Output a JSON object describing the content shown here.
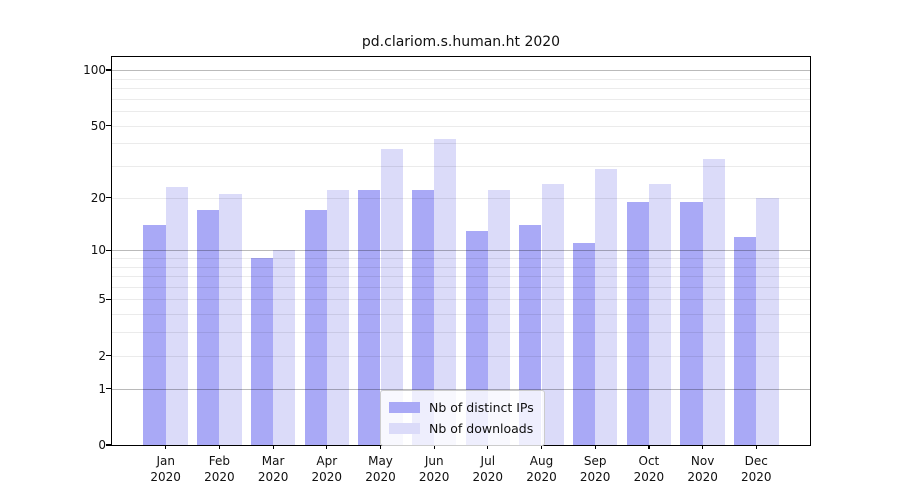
{
  "title": "pd.clariom.s.human.ht 2020",
  "chart_data": {
    "type": "bar",
    "title": "pd.clariom.s.human.ht 2020",
    "categories": [
      "Jan",
      "Feb",
      "Mar",
      "Apr",
      "May",
      "Jun",
      "Jul",
      "Aug",
      "Sep",
      "Oct",
      "Nov",
      "Dec"
    ],
    "category_year": "2020",
    "series": [
      {
        "name": "Nb of distinct IPs",
        "color": "#a9a9f6",
        "values": [
          14,
          17,
          9,
          17,
          22,
          22,
          13,
          14,
          11,
          19,
          19,
          12
        ]
      },
      {
        "name": "Nb of downloads",
        "color": "#dbdbf9",
        "values": [
          23,
          21,
          10,
          22,
          37,
          42,
          22,
          24,
          29,
          24,
          33,
          20
        ]
      }
    ],
    "yscale": "log1p",
    "ylim": [
      0,
      117
    ],
    "yticks": [
      100,
      50,
      20,
      10,
      5,
      2,
      1,
      0
    ],
    "grid": {
      "major": [
        1,
        10,
        100
      ],
      "minor": [
        2,
        3,
        4,
        5,
        6,
        7,
        8,
        9,
        20,
        30,
        40,
        50,
        60,
        70,
        80,
        90
      ],
      "major_color": "rgba(0,0,0,0.27)",
      "minor_color": "rgba(0,0,0,0.08)"
    },
    "legend_position": "lower center",
    "axis_color": "#000000",
    "background_color": "#ffffff"
  }
}
